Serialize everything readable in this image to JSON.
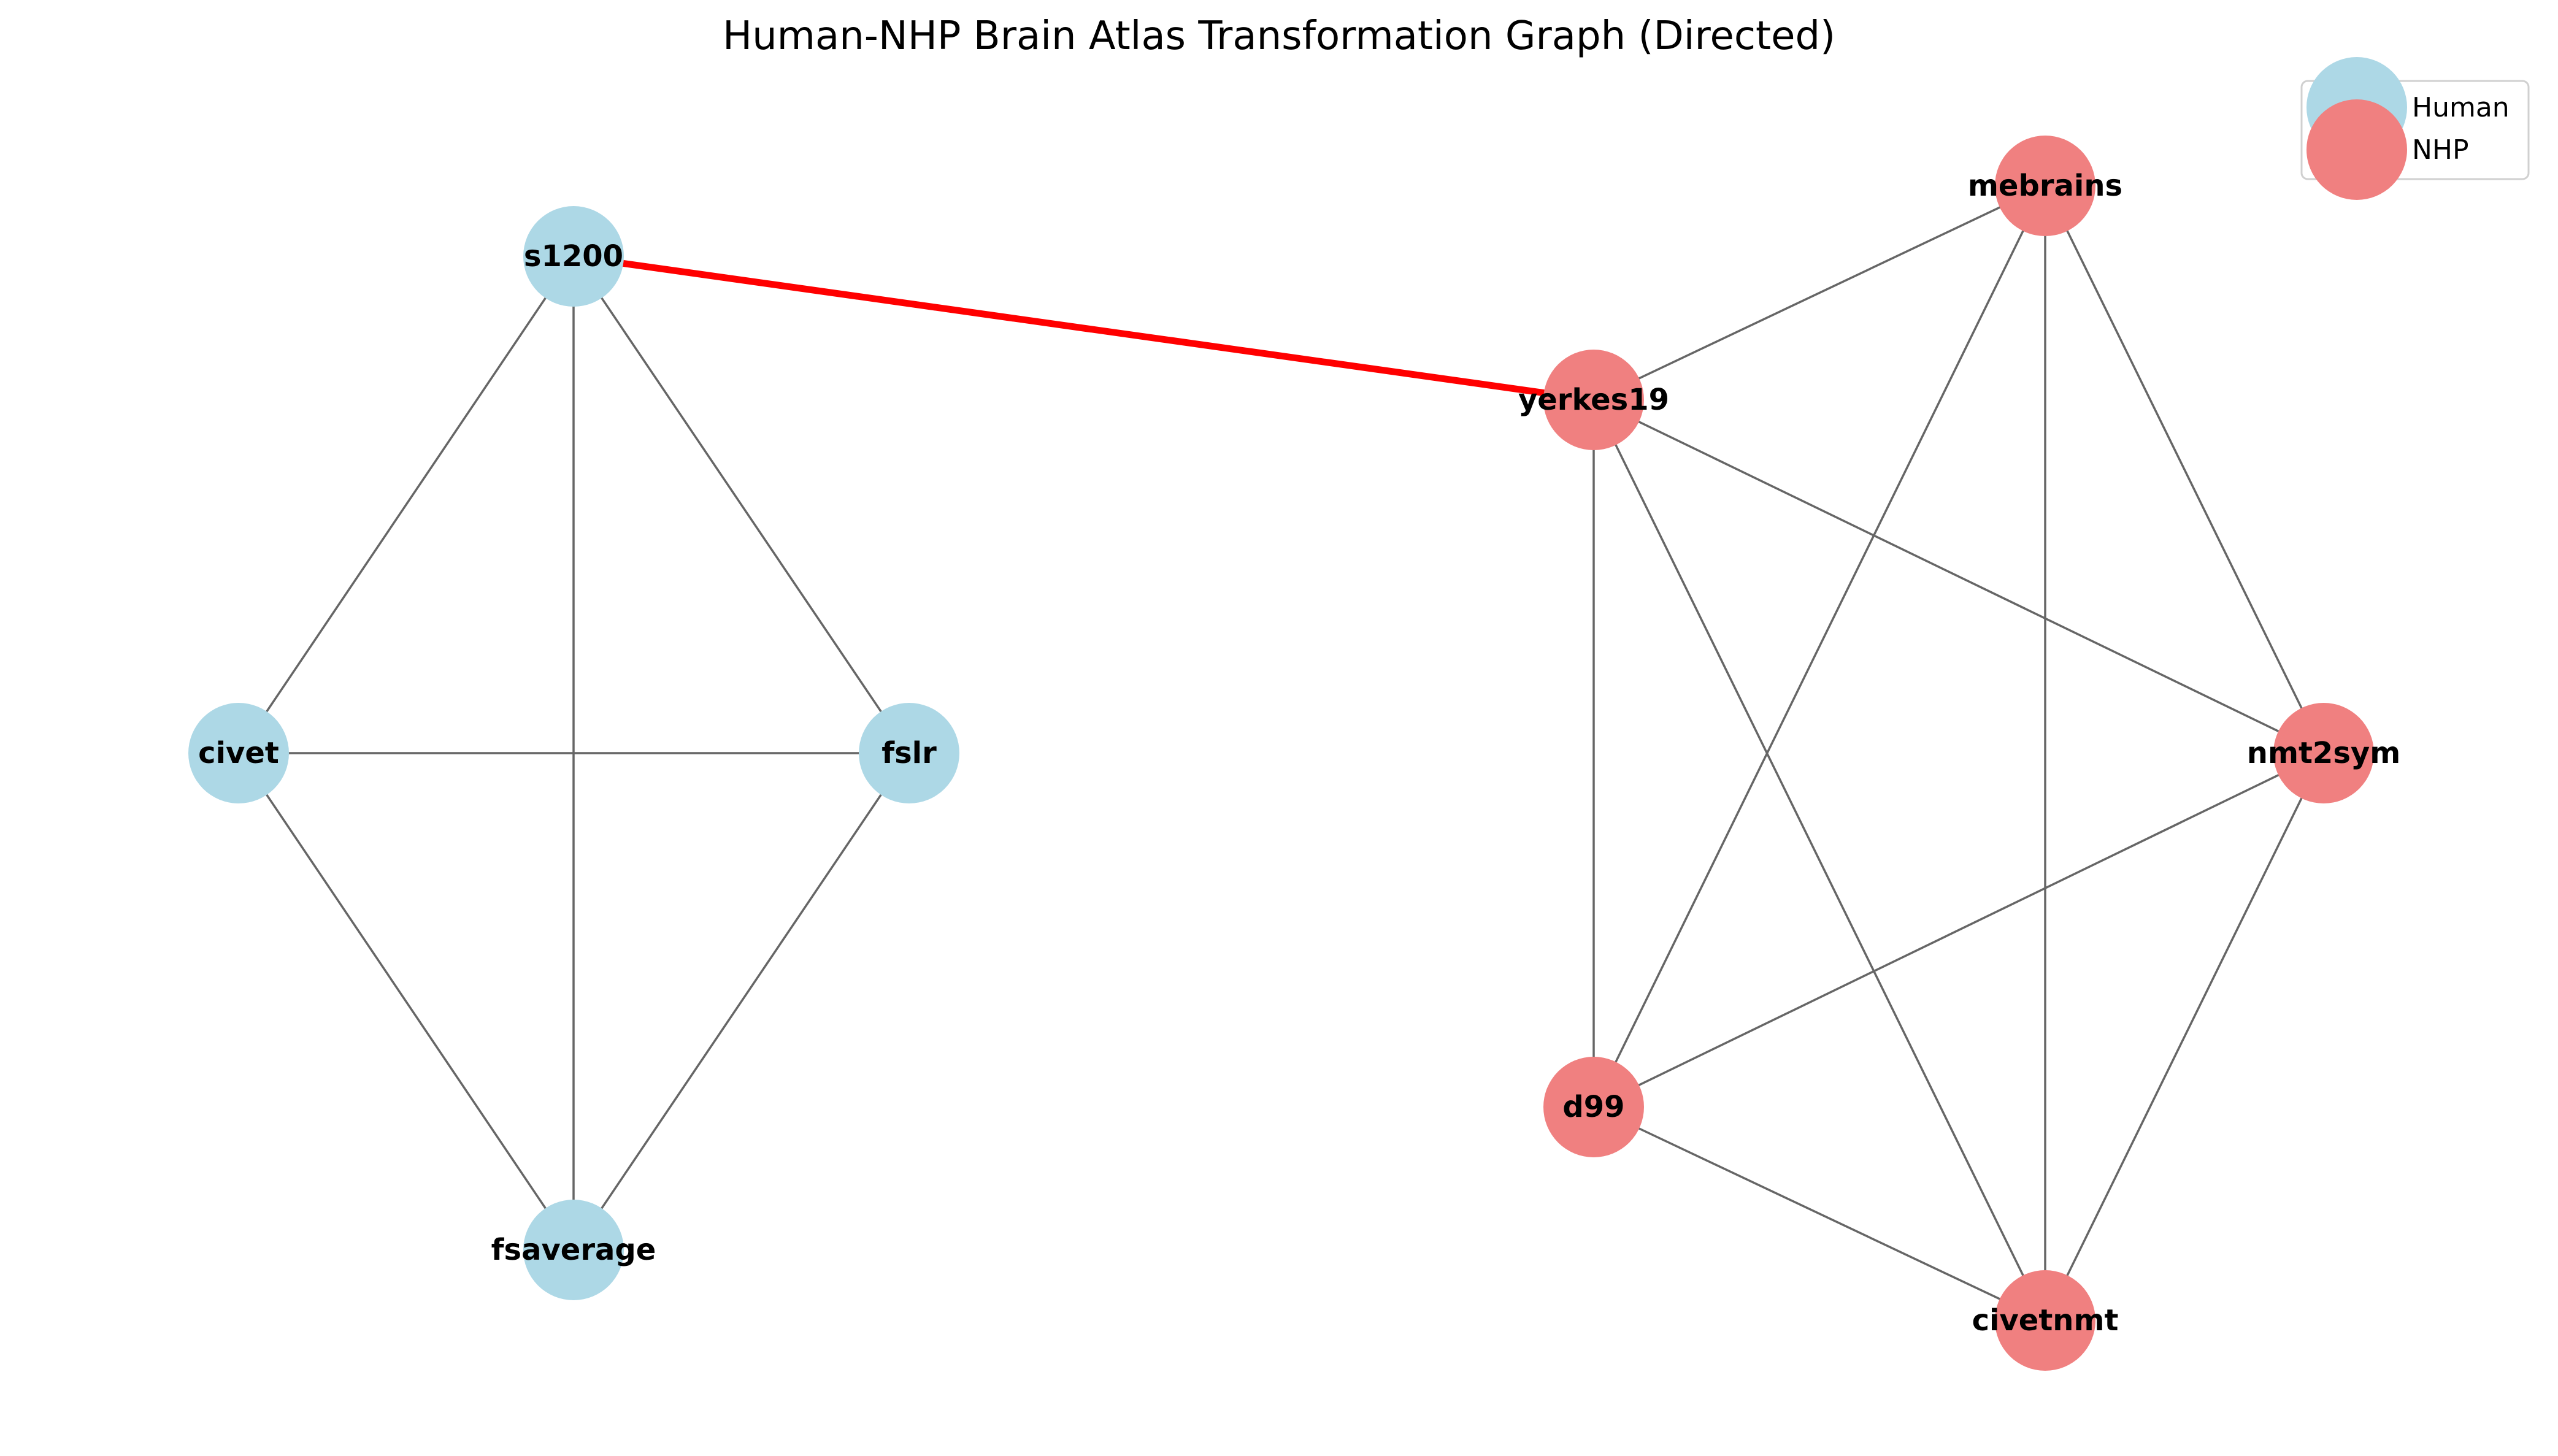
{
  "title": "Human-NHP Brain Atlas Transformation Graph (Directed)",
  "groups": {
    "human": {
      "label": "Human",
      "color": "#add8e6"
    },
    "nhp": {
      "label": "NHP",
      "color": "#f08080"
    }
  },
  "edge_colors": {
    "normal": "#666666",
    "highlight": "#ff0000"
  },
  "nodes": [
    {
      "id": "s1200",
      "label": "s1200",
      "group": "human"
    },
    {
      "id": "civet",
      "label": "civet",
      "group": "human"
    },
    {
      "id": "fslr",
      "label": "fslr",
      "group": "human"
    },
    {
      "id": "fsaverage",
      "label": "fsaverage",
      "group": "human"
    },
    {
      "id": "mebrains",
      "label": "mebrains",
      "group": "nhp"
    },
    {
      "id": "yerkes19",
      "label": "yerkes19",
      "group": "nhp"
    },
    {
      "id": "nmt2sym",
      "label": "nmt2sym",
      "group": "nhp"
    },
    {
      "id": "d99",
      "label": "d99",
      "group": "nhp"
    },
    {
      "id": "civetnmt",
      "label": "civetnmt",
      "group": "nhp"
    }
  ],
  "edges": [
    {
      "source": "s1200",
      "target": "civet"
    },
    {
      "source": "s1200",
      "target": "fslr"
    },
    {
      "source": "s1200",
      "target": "fsaverage"
    },
    {
      "source": "civet",
      "target": "fslr"
    },
    {
      "source": "civet",
      "target": "fsaverage"
    },
    {
      "source": "fslr",
      "target": "fsaverage"
    },
    {
      "source": "mebrains",
      "target": "yerkes19"
    },
    {
      "source": "mebrains",
      "target": "d99"
    },
    {
      "source": "mebrains",
      "target": "civetnmt"
    },
    {
      "source": "mebrains",
      "target": "nmt2sym"
    },
    {
      "source": "yerkes19",
      "target": "d99"
    },
    {
      "source": "yerkes19",
      "target": "civetnmt"
    },
    {
      "source": "yerkes19",
      "target": "nmt2sym"
    },
    {
      "source": "nmt2sym",
      "target": "d99"
    },
    {
      "source": "nmt2sym",
      "target": "civetnmt"
    },
    {
      "source": "d99",
      "target": "civetnmt"
    },
    {
      "source": "s1200",
      "target": "yerkes19",
      "highlight": true
    }
  ]
}
